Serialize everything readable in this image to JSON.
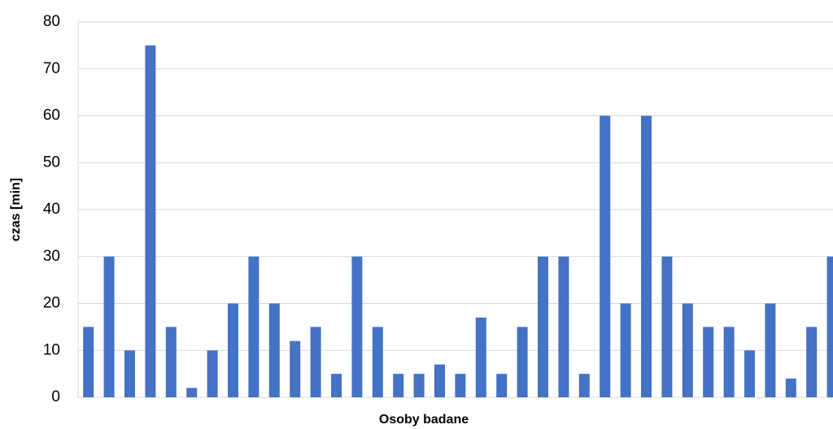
{
  "chart_data": {
    "type": "bar",
    "x_label": "Osoby badane",
    "y_label": "czas [min]",
    "categories": [
      null,
      null,
      null,
      null,
      null,
      null,
      null,
      null,
      null,
      null,
      null,
      null,
      null,
      null,
      null,
      null,
      null,
      null,
      null,
      null,
      null,
      null,
      null,
      null,
      null,
      null,
      null,
      null,
      null,
      null,
      null,
      null,
      null,
      null,
      null,
      null,
      null
    ],
    "values": [
      15,
      30,
      10,
      75,
      15,
      2,
      10,
      20,
      30,
      20,
      12,
      15,
      5,
      30,
      15,
      5,
      5,
      7,
      5,
      17,
      5,
      15,
      30,
      30,
      5,
      60,
      20,
      60,
      30,
      20,
      15,
      15,
      10,
      20,
      4,
      15,
      30
    ],
    "color": "#4472c4",
    "ylim": [
      0,
      80
    ],
    "yticks": [
      0,
      10,
      20,
      30,
      40,
      50,
      60,
      70,
      80
    ],
    "grid": true
  }
}
